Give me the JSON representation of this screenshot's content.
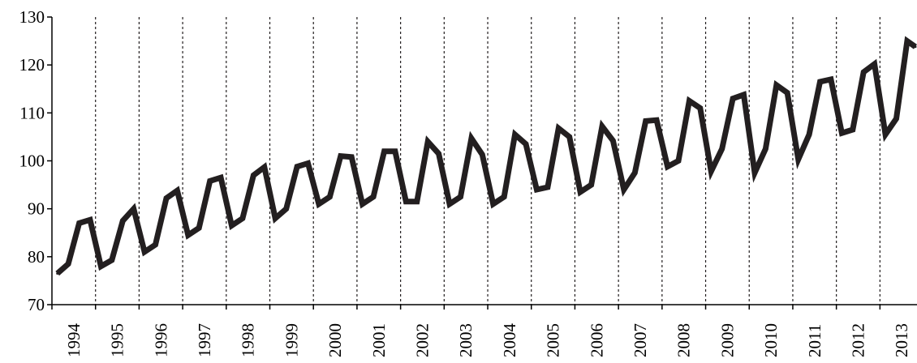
{
  "chart_data": {
    "type": "line",
    "title": "",
    "xlabel": "",
    "ylabel": "",
    "ylim": [
      70,
      130
    ],
    "yticks": [
      70,
      80,
      90,
      100,
      110,
      120,
      130
    ],
    "ytick_labels": [
      "70",
      "80",
      "90",
      "100",
      "110",
      "120",
      "130"
    ],
    "xtick_labels": [
      "1994",
      "1995",
      "1996",
      "1997",
      "1998",
      "1999",
      "2000",
      "2001",
      "2002",
      "2003",
      "2004",
      "2005",
      "2006",
      "2007",
      "2008",
      "2009",
      "2010",
      "2011",
      "2012",
      "2013"
    ],
    "x_label_rotation": "vertical",
    "grid": "vertical dashed lines at year boundaries",
    "legend": "none",
    "line_color": "#231f20",
    "frequency": "quarterly",
    "series": [
      {
        "values": [
          76.5,
          78.5,
          87.0,
          87.7,
          78.0,
          79.3,
          87.5,
          90.0,
          81.0,
          82.5,
          92.2,
          93.8,
          84.5,
          86.0,
          95.8,
          96.5,
          86.5,
          88.0,
          97.0,
          98.7,
          88.0,
          90.0,
          98.8,
          99.5,
          91.0,
          92.5,
          101.0,
          100.8,
          91.0,
          92.5,
          102.0,
          102.0,
          91.5,
          91.5,
          104.0,
          101.5,
          91.0,
          92.5,
          104.7,
          101.3,
          91.0,
          92.5,
          105.5,
          103.5,
          94.0,
          94.5,
          106.8,
          105.0,
          93.5,
          95.0,
          107.2,
          104.2,
          94.0,
          97.5,
          108.3,
          108.5,
          98.8,
          100.0,
          112.5,
          111.0,
          97.8,
          102.5,
          113.0,
          113.8,
          97.5,
          102.5,
          115.8,
          114.2,
          100.3,
          105.5,
          116.5,
          117.0,
          105.8,
          106.5,
          118.5,
          120.2,
          105.5,
          108.8,
          125.0,
          123.8
        ]
      }
    ]
  }
}
